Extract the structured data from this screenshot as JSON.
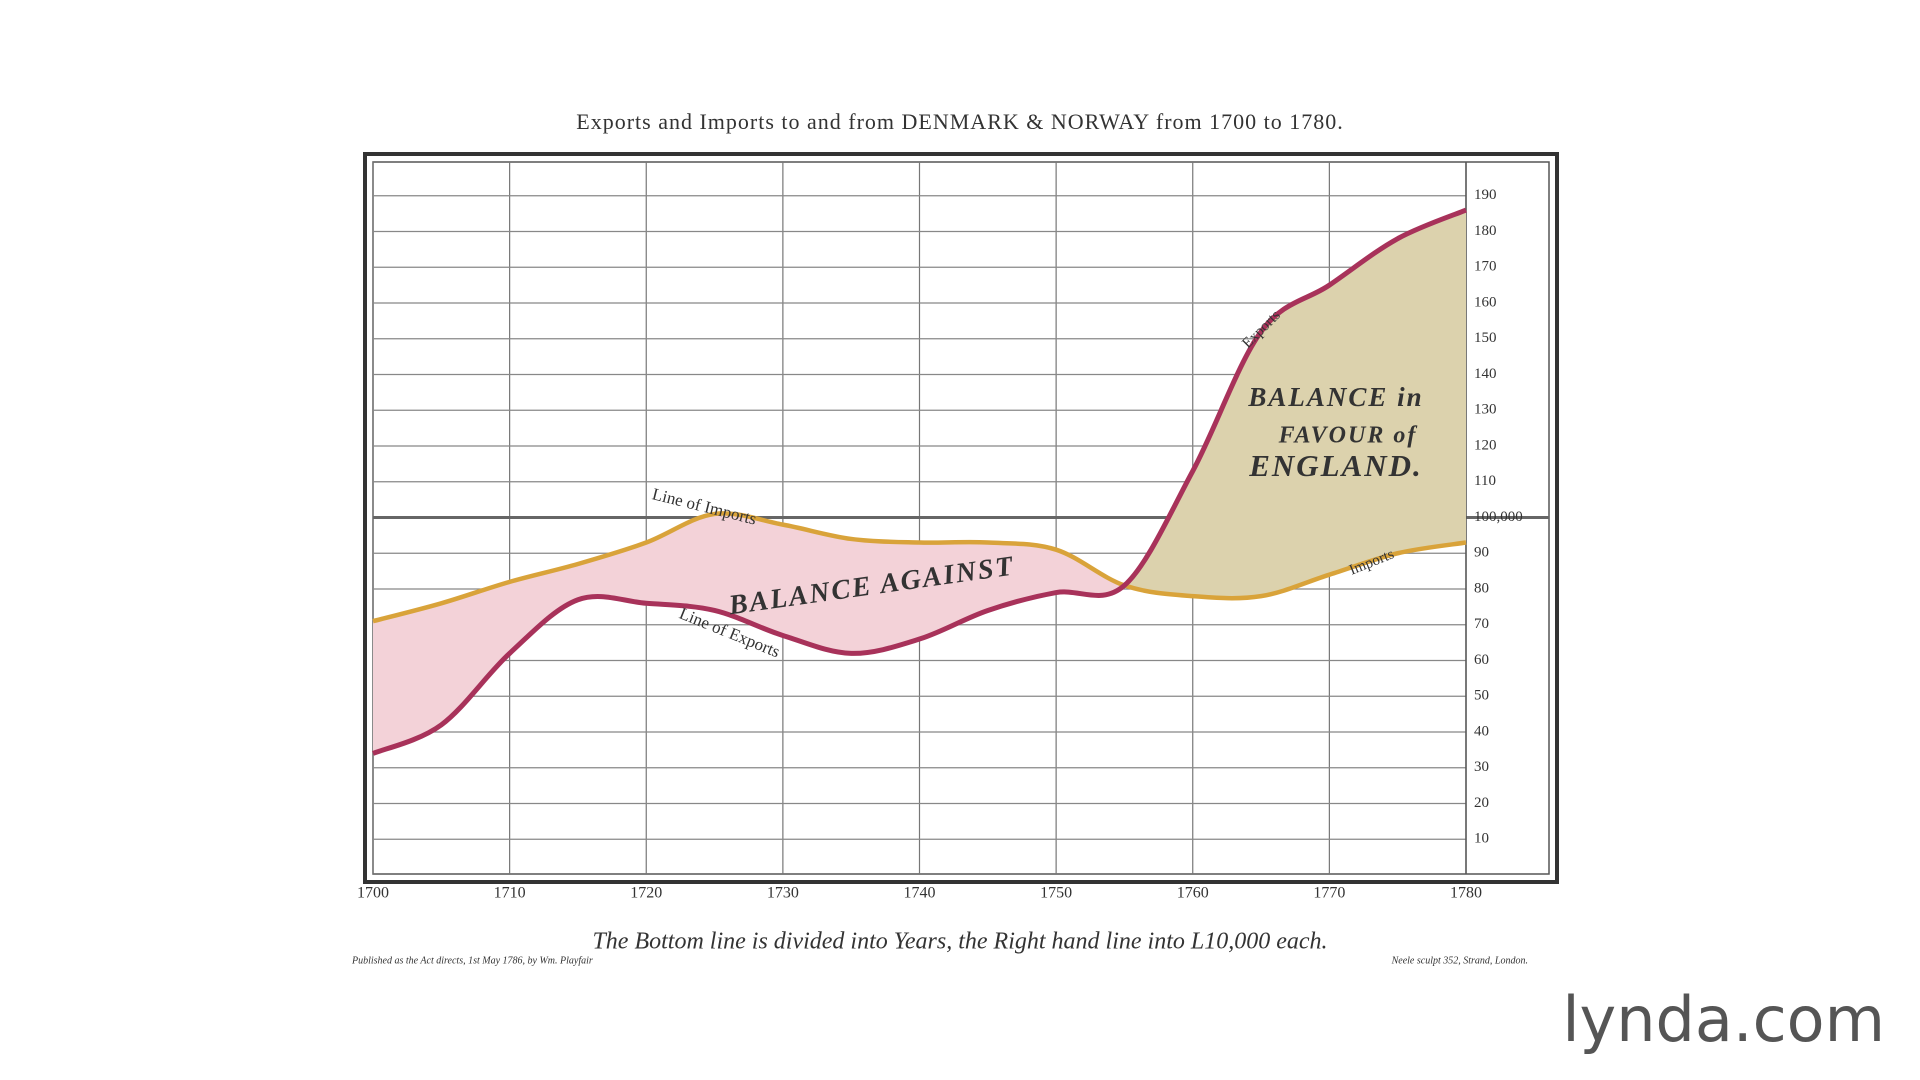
{
  "chart_data": {
    "type": "line",
    "title": "Exports and Imports to and from DENMARK & NORWAY from 1700 to 1780.",
    "note": "The Bottom line is divided into Years, the Right hand line into L10,000 each.",
    "imprint_left": "Published as the Act directs, 1st May 1786, by Wm. Playfair",
    "imprint_right": "Neele sculpt 352, Strand, London.",
    "x": [
      1700,
      1705,
      1710,
      1715,
      1720,
      1725,
      1730,
      1735,
      1740,
      1745,
      1750,
      1755,
      1760,
      1765,
      1770,
      1775,
      1780
    ],
    "series": [
      {
        "name": "Imports",
        "color": "#d9a33a",
        "values": [
          71,
          76,
          82,
          87,
          93,
          101,
          98,
          94,
          93,
          93,
          91,
          81,
          78,
          78,
          84,
          90,
          93
        ]
      },
      {
        "name": "Exports",
        "color": "#a8325a",
        "values": [
          34,
          42,
          62,
          77,
          76,
          74,
          67,
          62,
          66,
          74,
          79,
          81,
          113,
          152,
          165,
          178,
          186
        ]
      }
    ],
    "balance_colors": {
      "against": "#f3d2d8",
      "favour": "#dcd2ad"
    },
    "annotations": [
      "Line of Imports",
      "Line of Exports",
      "BALANCE AGAINST",
      "Exports",
      "Imports",
      "BALANCE in",
      "FAVOUR of",
      "ENGLAND."
    ],
    "xlim": [
      1700,
      1780
    ],
    "xticks": [
      1700,
      1710,
      1720,
      1730,
      1740,
      1750,
      1760,
      1770,
      1780
    ],
    "ylim": [
      0,
      200
    ],
    "yticks": [
      10,
      20,
      30,
      40,
      50,
      60,
      70,
      80,
      90,
      {
        "value": 100,
        "label": "100,000"
      },
      110,
      120,
      130,
      140,
      150,
      160,
      170,
      180,
      190
    ],
    "grid": true
  },
  "logo": "lynda.com"
}
